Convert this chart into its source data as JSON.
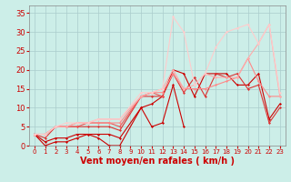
{
  "xlabel": "Vent moyen/en rafales ( km/h )",
  "background_color": "#cceee8",
  "grid_color": "#aacccc",
  "xlim": [
    -0.5,
    23.5
  ],
  "ylim": [
    0,
    37
  ],
  "xticks": [
    0,
    1,
    2,
    3,
    4,
    5,
    6,
    7,
    8,
    9,
    10,
    11,
    12,
    13,
    14,
    15,
    16,
    17,
    18,
    19,
    20,
    21,
    22,
    23
  ],
  "yticks": [
    0,
    5,
    10,
    15,
    20,
    25,
    30,
    35
  ],
  "series": [
    {
      "x": [
        0,
        1,
        2,
        3,
        4,
        5,
        6,
        7,
        8,
        10,
        11,
        12,
        13,
        14
      ],
      "y": [
        3,
        0,
        1,
        1,
        2,
        3,
        2,
        0,
        0,
        10,
        5,
        6,
        16,
        5
      ],
      "color": "#cc0000",
      "lw": 0.8
    },
    {
      "x": [
        0,
        1,
        2,
        3,
        4,
        5,
        6,
        7,
        8,
        10,
        11,
        12,
        13,
        14,
        15,
        16,
        17,
        18,
        19,
        20,
        21,
        22,
        23
      ],
      "y": [
        3,
        1,
        2,
        2,
        3,
        3,
        3,
        3,
        2,
        10,
        11,
        13,
        20,
        19,
        13,
        19,
        19,
        19,
        16,
        16,
        19,
        7,
        11
      ],
      "color": "#cc0000",
      "lw": 0.8
    },
    {
      "x": [
        0,
        1,
        2,
        3,
        4,
        5,
        6,
        7,
        8,
        10,
        11,
        12,
        13,
        14,
        15,
        16,
        17,
        18,
        19,
        20,
        21,
        22,
        23
      ],
      "y": [
        3,
        2,
        5,
        5,
        5,
        5,
        5,
        5,
        4,
        13,
        13,
        13,
        19,
        14,
        18,
        13,
        19,
        18,
        19,
        15,
        16,
        6,
        10
      ],
      "color": "#dd3333",
      "lw": 0.8
    },
    {
      "x": [
        0,
        1,
        2,
        3,
        4,
        5,
        6,
        7,
        8,
        10,
        11,
        12
      ],
      "y": [
        3,
        3,
        5,
        5,
        5,
        6,
        6,
        6,
        5,
        13,
        14,
        13
      ],
      "color": "#ee5555",
      "lw": 0.8
    },
    {
      "x": [
        0,
        1,
        2,
        3,
        4,
        5,
        6,
        7,
        8,
        10,
        11,
        12,
        13,
        14,
        15,
        16,
        17,
        18,
        19,
        20,
        21,
        22,
        23
      ],
      "y": [
        3,
        3,
        5,
        5,
        6,
        6,
        6,
        6,
        6,
        13,
        14,
        14,
        19,
        15,
        15,
        15,
        16,
        17,
        18,
        23,
        17,
        13,
        13
      ],
      "color": "#ff8888",
      "lw": 0.8
    },
    {
      "x": [
        0,
        1,
        2,
        3,
        4,
        5,
        6,
        7,
        8,
        10,
        11,
        12,
        13,
        14,
        15,
        16,
        17,
        18,
        19,
        20,
        21,
        22,
        23
      ],
      "y": [
        3,
        3,
        5,
        5,
        6,
        6,
        7,
        7,
        7,
        13,
        14,
        15,
        20,
        15,
        16,
        19,
        18,
        18,
        18,
        23,
        27,
        32,
        13
      ],
      "color": "#ffaaaa",
      "lw": 0.8
    },
    {
      "x": [
        0,
        1,
        2,
        3,
        4,
        5,
        6,
        7,
        8,
        10,
        11,
        12,
        13,
        14,
        15,
        16,
        17,
        18,
        19,
        20,
        21,
        22,
        23
      ],
      "y": [
        3,
        3,
        5,
        6,
        6,
        6,
        7,
        7,
        7,
        14,
        14,
        15,
        34,
        30,
        16,
        19,
        26,
        30,
        31,
        32,
        27,
        32,
        14
      ],
      "color": "#ffcccc",
      "lw": 0.8
    }
  ],
  "label_color": "#cc0000",
  "axis_label_color": "#cc0000",
  "tick_color": "#cc0000",
  "xlabel_fontsize": 7,
  "ytick_fontsize": 6,
  "xtick_fontsize": 5
}
